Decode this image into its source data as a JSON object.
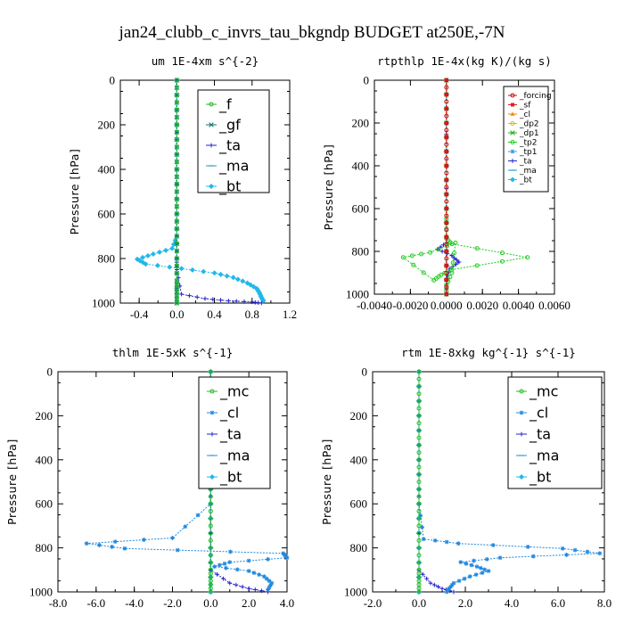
{
  "figure_title": "jan24_clubb_c_invrs_tau_bkgndp  BUDGET at250E,-7N",
  "chart_data": [
    {
      "type": "line",
      "title": "um   1E-4xm s^{-2}",
      "ylabel": "Pressure [hPa]",
      "xlim": [
        -0.6,
        1.2
      ],
      "ylim": [
        1000,
        0
      ],
      "xticks": [
        -0.4,
        0.0,
        0.4,
        0.8,
        1.2
      ],
      "xtick_labels": [
        "-0.4",
        "0.0",
        "0.4",
        "0.8",
        "1.2"
      ],
      "yticks": [
        0,
        200,
        400,
        600,
        800,
        1000
      ],
      "ytick_labels": [
        "0",
        "200",
        "400",
        "600",
        "800",
        "1000"
      ],
      "legend_font": 16,
      "series": [
        {
          "name": "_f",
          "color": "#22bb22",
          "marker": "o",
          "x": [
            0,
            0,
            0,
            0,
            0,
            0,
            0,
            0,
            0,
            0,
            0,
            0
          ],
          "y": [
            0,
            100,
            200,
            300,
            400,
            500,
            600,
            700,
            800,
            900,
            950,
            1000
          ]
        },
        {
          "name": "_gf",
          "color": "#117766",
          "marker": "x",
          "x": [
            0,
            0,
            0,
            0,
            0,
            0,
            0,
            0,
            0,
            0,
            0,
            0
          ],
          "y": [
            0,
            100,
            200,
            300,
            400,
            500,
            600,
            700,
            800,
            900,
            950,
            1000
          ]
        },
        {
          "name": "_ta",
          "color": "#2222cc",
          "marker": "+",
          "x": [
            0,
            0,
            0,
            0,
            0.05,
            0.3,
            0.55,
            0.8,
            0.9
          ],
          "y": [
            0,
            700,
            800,
            850,
            960,
            980,
            990,
            995,
            1000
          ]
        },
        {
          "name": "_ma",
          "color": "#2299cc",
          "marker": "-",
          "x": [
            0,
            0,
            0,
            0,
            0,
            0
          ],
          "y": [
            0,
            200,
            400,
            600,
            800,
            1000
          ]
        },
        {
          "name": "_bt",
          "color": "#22b8e8",
          "marker": "d",
          "x": [
            0,
            0,
            0,
            0,
            0,
            -0.05,
            -0.25,
            -0.42,
            -0.33,
            0.05,
            0.4,
            0.6,
            0.75,
            0.85,
            0.88,
            0.9,
            0.92
          ],
          "y": [
            0,
            200,
            400,
            600,
            700,
            755,
            780,
            803,
            825,
            845,
            865,
            885,
            910,
            935,
            955,
            975,
            990
          ]
        }
      ]
    },
    {
      "type": "line",
      "title": "rtpthlp   1E-4x(kg K)/(kg s)",
      "ylabel": "Pressure [hPa]",
      "xlim": [
        -0.004,
        0.006
      ],
      "ylim": [
        1000,
        0
      ],
      "xticks": [
        -0.004,
        -0.002,
        0.0,
        0.002,
        0.004,
        0.006
      ],
      "xtick_labels": [
        "-0.0040",
        "-0.0020",
        "0.0000",
        "0.0020",
        "0.0040",
        "0.0060"
      ],
      "yticks": [
        0,
        200,
        400,
        600,
        800,
        1000
      ],
      "ytick_labels": [
        "0",
        "200",
        "400",
        "600",
        "800",
        "1000"
      ],
      "legend_font": 9,
      "series": [
        {
          "name": "_forcing",
          "color": "#cc1111",
          "marker": "o",
          "x": [
            0,
            0,
            0,
            0,
            0,
            0,
            0,
            0,
            0,
            0,
            0
          ],
          "y": [
            0,
            100,
            200,
            300,
            400,
            500,
            600,
            700,
            800,
            900,
            1000
          ]
        },
        {
          "name": "_sf",
          "color": "#dd2222",
          "marker": "s",
          "x": [
            0,
            0,
            0,
            0,
            0,
            0
          ],
          "y": [
            0,
            200,
            400,
            600,
            800,
            1000
          ]
        },
        {
          "name": "_cl",
          "color": "#ee8800",
          "marker": "^",
          "x": [
            0,
            0,
            0,
            0,
            0,
            0
          ],
          "y": [
            0,
            200,
            400,
            600,
            800,
            1000
          ]
        },
        {
          "name": "_dp2",
          "color": "#ddbb00",
          "marker": "o",
          "x": [
            0,
            0,
            0,
            0,
            0,
            0
          ],
          "y": [
            0,
            200,
            400,
            600,
            800,
            1000
          ]
        },
        {
          "name": "_dp1",
          "color": "#22aa22",
          "marker": "x",
          "x": [
            0,
            0,
            0,
            0,
            0,
            0
          ],
          "y": [
            0,
            200,
            400,
            600,
            800,
            1000
          ]
        },
        {
          "name": "_tp2",
          "color": "#22cc22",
          "marker": "o",
          "x": [
            0,
            0,
            0,
            0.0003,
            0.0045,
            0.0003,
            -0.0003,
            -0.0007,
            -0.0024,
            -0.0009,
            0.0005,
            0.0003,
            0,
            0
          ],
          "y": [
            0,
            600,
            740,
            765,
            828,
            885,
            910,
            935,
            828,
            805,
            760,
            900,
            960,
            1000
          ]
        },
        {
          "name": "_tp1",
          "color": "#3399ee",
          "marker": "*",
          "x": [
            0,
            0,
            0,
            0,
            0
          ],
          "y": [
            0,
            200,
            400,
            600,
            1000
          ]
        },
        {
          "name": "_ta",
          "color": "#2222cc",
          "marker": "+",
          "x": [
            0,
            0,
            -0.0005,
            0.0003,
            0.0007,
            0.0002,
            0,
            0
          ],
          "y": [
            0,
            760,
            790,
            820,
            850,
            880,
            930,
            1000
          ]
        },
        {
          "name": "_ma",
          "color": "#2299cc",
          "marker": "-",
          "x": [
            0,
            0,
            0,
            0,
            0,
            0
          ],
          "y": [
            0,
            200,
            400,
            600,
            800,
            1000
          ]
        },
        {
          "name": "_bt",
          "color": "#22b8e8",
          "marker": "d",
          "x": [
            0,
            0,
            0,
            0,
            0,
            0
          ],
          "y": [
            0,
            200,
            400,
            600,
            800,
            1000
          ]
        }
      ]
    },
    {
      "type": "line",
      "title": "thlm   1E-5xK s^{-1}",
      "ylabel": "Pressure [hPa]",
      "xlim": [
        -8,
        4
      ],
      "ylim": [
        1000,
        0
      ],
      "xticks": [
        -8,
        -6,
        -4,
        -2,
        0,
        2,
        4
      ],
      "xtick_labels": [
        "-8.0",
        "-6.0",
        "-4.0",
        "-2.0",
        "0.0",
        "2.0",
        "4.0"
      ],
      "yticks": [
        0,
        200,
        400,
        600,
        800,
        1000
      ],
      "ytick_labels": [
        "0",
        "200",
        "400",
        "600",
        "800",
        "1000"
      ],
      "legend_font": 16,
      "series": [
        {
          "name": "_mc",
          "color": "#22bb22",
          "marker": "o",
          "x": [
            0,
            0,
            0,
            0,
            0,
            0,
            0,
            0,
            0,
            0,
            0,
            0
          ],
          "y": [
            0,
            100,
            200,
            300,
            400,
            500,
            600,
            700,
            800,
            900,
            950,
            1000
          ]
        },
        {
          "name": "_cl",
          "color": "#2288dd",
          "marker": "*",
          "x": [
            0,
            0,
            0,
            0,
            -2,
            -6.5,
            -4.5,
            3.8,
            4,
            1,
            0.2,
            2,
            2.8,
            3.2,
            3
          ],
          "y": [
            0,
            200,
            400,
            600,
            755,
            780,
            803,
            825,
            845,
            865,
            885,
            905,
            930,
            960,
            990
          ]
        },
        {
          "name": "_ta",
          "color": "#2222cc",
          "marker": "+",
          "x": [
            0,
            0,
            0,
            0,
            1,
            2,
            3
          ],
          "y": [
            0,
            200,
            400,
            900,
            960,
            985,
            1000
          ]
        },
        {
          "name": "_ma",
          "color": "#2299cc",
          "marker": "-",
          "x": [
            0,
            0,
            0,
            0,
            0,
            0
          ],
          "y": [
            0,
            200,
            400,
            600,
            800,
            1000
          ]
        },
        {
          "name": "_bt",
          "color": "#22b8e8",
          "marker": "d",
          "x": [
            0,
            0,
            0,
            0,
            0,
            0,
            0
          ],
          "y": [
            0,
            200,
            400,
            600,
            800,
            900,
            1000
          ]
        }
      ]
    },
    {
      "type": "line",
      "title": "rtm   1E-8xkg kg^{-1} s^{-1}",
      "ylabel": "Pressure [hPa]",
      "xlim": [
        -2,
        8
      ],
      "ylim": [
        1000,
        0
      ],
      "xticks": [
        -2,
        0,
        2,
        4,
        6,
        8
      ],
      "xtick_labels": [
        "-2.0",
        "0.0",
        "2.0",
        "4.0",
        "6.0",
        "8.0"
      ],
      "yticks": [
        0,
        200,
        400,
        600,
        800,
        1000
      ],
      "ytick_labels": [
        "0",
        "200",
        "400",
        "600",
        "800",
        "1000"
      ],
      "legend_font": 16,
      "series": [
        {
          "name": "_mc",
          "color": "#22bb22",
          "marker": "o",
          "x": [
            0,
            0,
            0,
            0,
            0,
            0,
            0,
            0,
            0,
            0,
            0,
            0
          ],
          "y": [
            0,
            100,
            200,
            300,
            400,
            500,
            600,
            700,
            800,
            900,
            950,
            1000
          ]
        },
        {
          "name": "_cl",
          "color": "#2288dd",
          "marker": "*",
          "x": [
            0,
            0,
            0,
            0,
            0.2,
            1.7,
            6.2,
            7.8,
            3.5,
            1.8,
            2.5,
            3.0,
            2.2,
            1.5,
            1.3,
            1.2
          ],
          "y": [
            0,
            200,
            400,
            600,
            760,
            780,
            803,
            825,
            845,
            865,
            885,
            905,
            930,
            960,
            985,
            1000
          ]
        },
        {
          "name": "_ta",
          "color": "#2222cc",
          "marker": "+",
          "x": [
            0,
            0,
            0,
            0,
            0.5,
            1,
            1.5
          ],
          "y": [
            0,
            200,
            400,
            900,
            960,
            985,
            1000
          ]
        },
        {
          "name": "_ma",
          "color": "#2299cc",
          "marker": "-",
          "x": [
            0,
            0,
            0,
            0,
            0,
            0
          ],
          "y": [
            0,
            200,
            400,
            600,
            800,
            1000
          ]
        },
        {
          "name": "_bt",
          "color": "#22b8e8",
          "marker": "d",
          "x": [
            0,
            0,
            0,
            0,
            0,
            0
          ],
          "y": [
            0,
            200,
            400,
            600,
            800,
            1000
          ]
        }
      ]
    }
  ]
}
